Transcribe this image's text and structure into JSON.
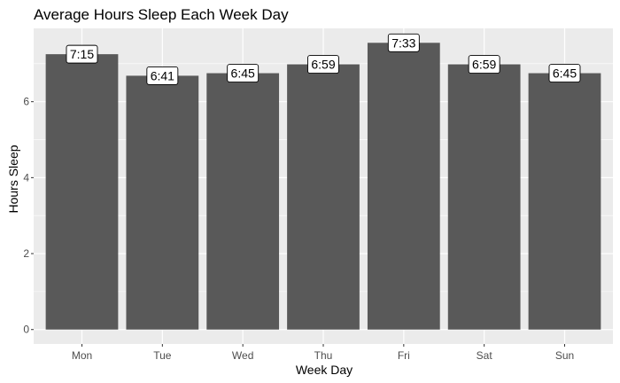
{
  "chart_data": {
    "type": "bar",
    "title": "Average Hours Sleep Each Week Day",
    "xlabel": "Week Day",
    "ylabel": "Hours Sleep",
    "categories": [
      "Mon",
      "Tue",
      "Wed",
      "Thu",
      "Fri",
      "Sat",
      "Sun"
    ],
    "values": [
      7.25,
      6.683,
      6.75,
      6.983,
      7.55,
      6.983,
      6.75
    ],
    "labels": [
      "7:15",
      "6:41",
      "6:45",
      "6:59",
      "7:33",
      "6:59",
      "6:45"
    ],
    "yticks": [
      0,
      2,
      4,
      6
    ],
    "ytick_labels": [
      "0",
      "2",
      "4",
      "6"
    ],
    "ylim": [
      -0.38,
      7.93
    ],
    "grid": true,
    "colors": {
      "bar": "#595959",
      "panel": "#ebebeb",
      "gridline": "#ffffff",
      "label_box": "#ffffff",
      "label_border": "#000000"
    }
  }
}
